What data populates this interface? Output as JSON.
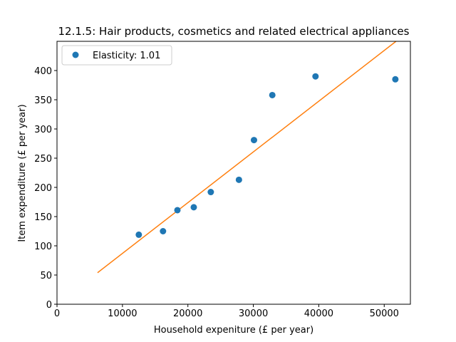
{
  "chart_data": {
    "type": "scatter",
    "title": "12.1.5: Hair products, cosmetics and related electrical appliances",
    "xlabel": "Household expeniture (£ per year)",
    "ylabel": "Item expenditure (£ per year)",
    "xlim": [
      0,
      54000
    ],
    "ylim": [
      0,
      450
    ],
    "xticks": [
      0,
      10000,
      20000,
      30000,
      40000,
      50000
    ],
    "yticks": [
      0,
      50,
      100,
      150,
      200,
      250,
      300,
      350,
      400
    ],
    "grid": false,
    "legend_position": "top-left",
    "series": [
      {
        "name": "Elasticity: 1.01",
        "kind": "points",
        "color": "#1f77b4",
        "x": [
          12500,
          16200,
          18400,
          20900,
          23500,
          27800,
          30100,
          32900,
          39500,
          51700
        ],
        "y": [
          119,
          125,
          161,
          166,
          192,
          213,
          281,
          358,
          390,
          385
        ]
      },
      {
        "kind": "line",
        "color": "#ff7f0e",
        "x": [
          6200,
          51800
        ],
        "y": [
          54,
          450
        ]
      }
    ]
  }
}
